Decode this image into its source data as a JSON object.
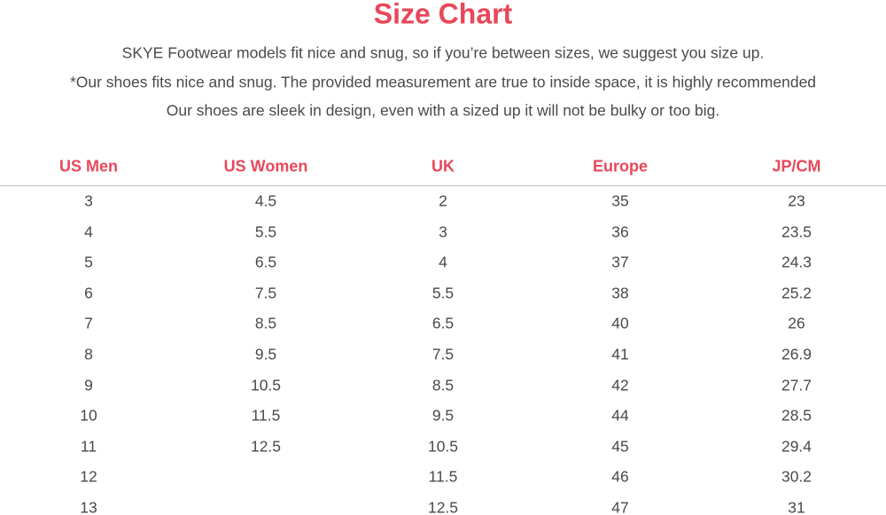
{
  "header": {
    "title": "Size Chart",
    "lines": [
      "SKYE Footwear models fit nice and snug, so if you’re between sizes, we suggest you size up.",
      "*Our shoes fits nice and snug. The provided measurement are true to inside space, it is highly recommended",
      "Our shoes are sleek in design, even with a sized up it will not be bulky or too big."
    ]
  },
  "table": {
    "columns": [
      "US Men",
      "US Women",
      "UK",
      "Europe",
      "JP/CM"
    ],
    "rows": [
      [
        "3",
        "4.5",
        "2",
        "35",
        "23"
      ],
      [
        "4",
        "5.5",
        "3",
        "36",
        "23.5"
      ],
      [
        "5",
        "6.5",
        "4",
        "37",
        "24.3"
      ],
      [
        "6",
        "7.5",
        "5.5",
        "38",
        "25.2"
      ],
      [
        "7",
        "8.5",
        "6.5",
        "40",
        "26"
      ],
      [
        "8",
        "9.5",
        "7.5",
        "41",
        "26.9"
      ],
      [
        "9",
        "10.5",
        "8.5",
        "42",
        "27.7"
      ],
      [
        "10",
        "11.5",
        "9.5",
        "44",
        "28.5"
      ],
      [
        "11",
        "12.5",
        "10.5",
        "45",
        "29.4"
      ],
      [
        "12",
        null,
        "11.5",
        "46",
        "30.2"
      ],
      [
        "13",
        null,
        "12.5",
        "47",
        "31"
      ]
    ]
  }
}
